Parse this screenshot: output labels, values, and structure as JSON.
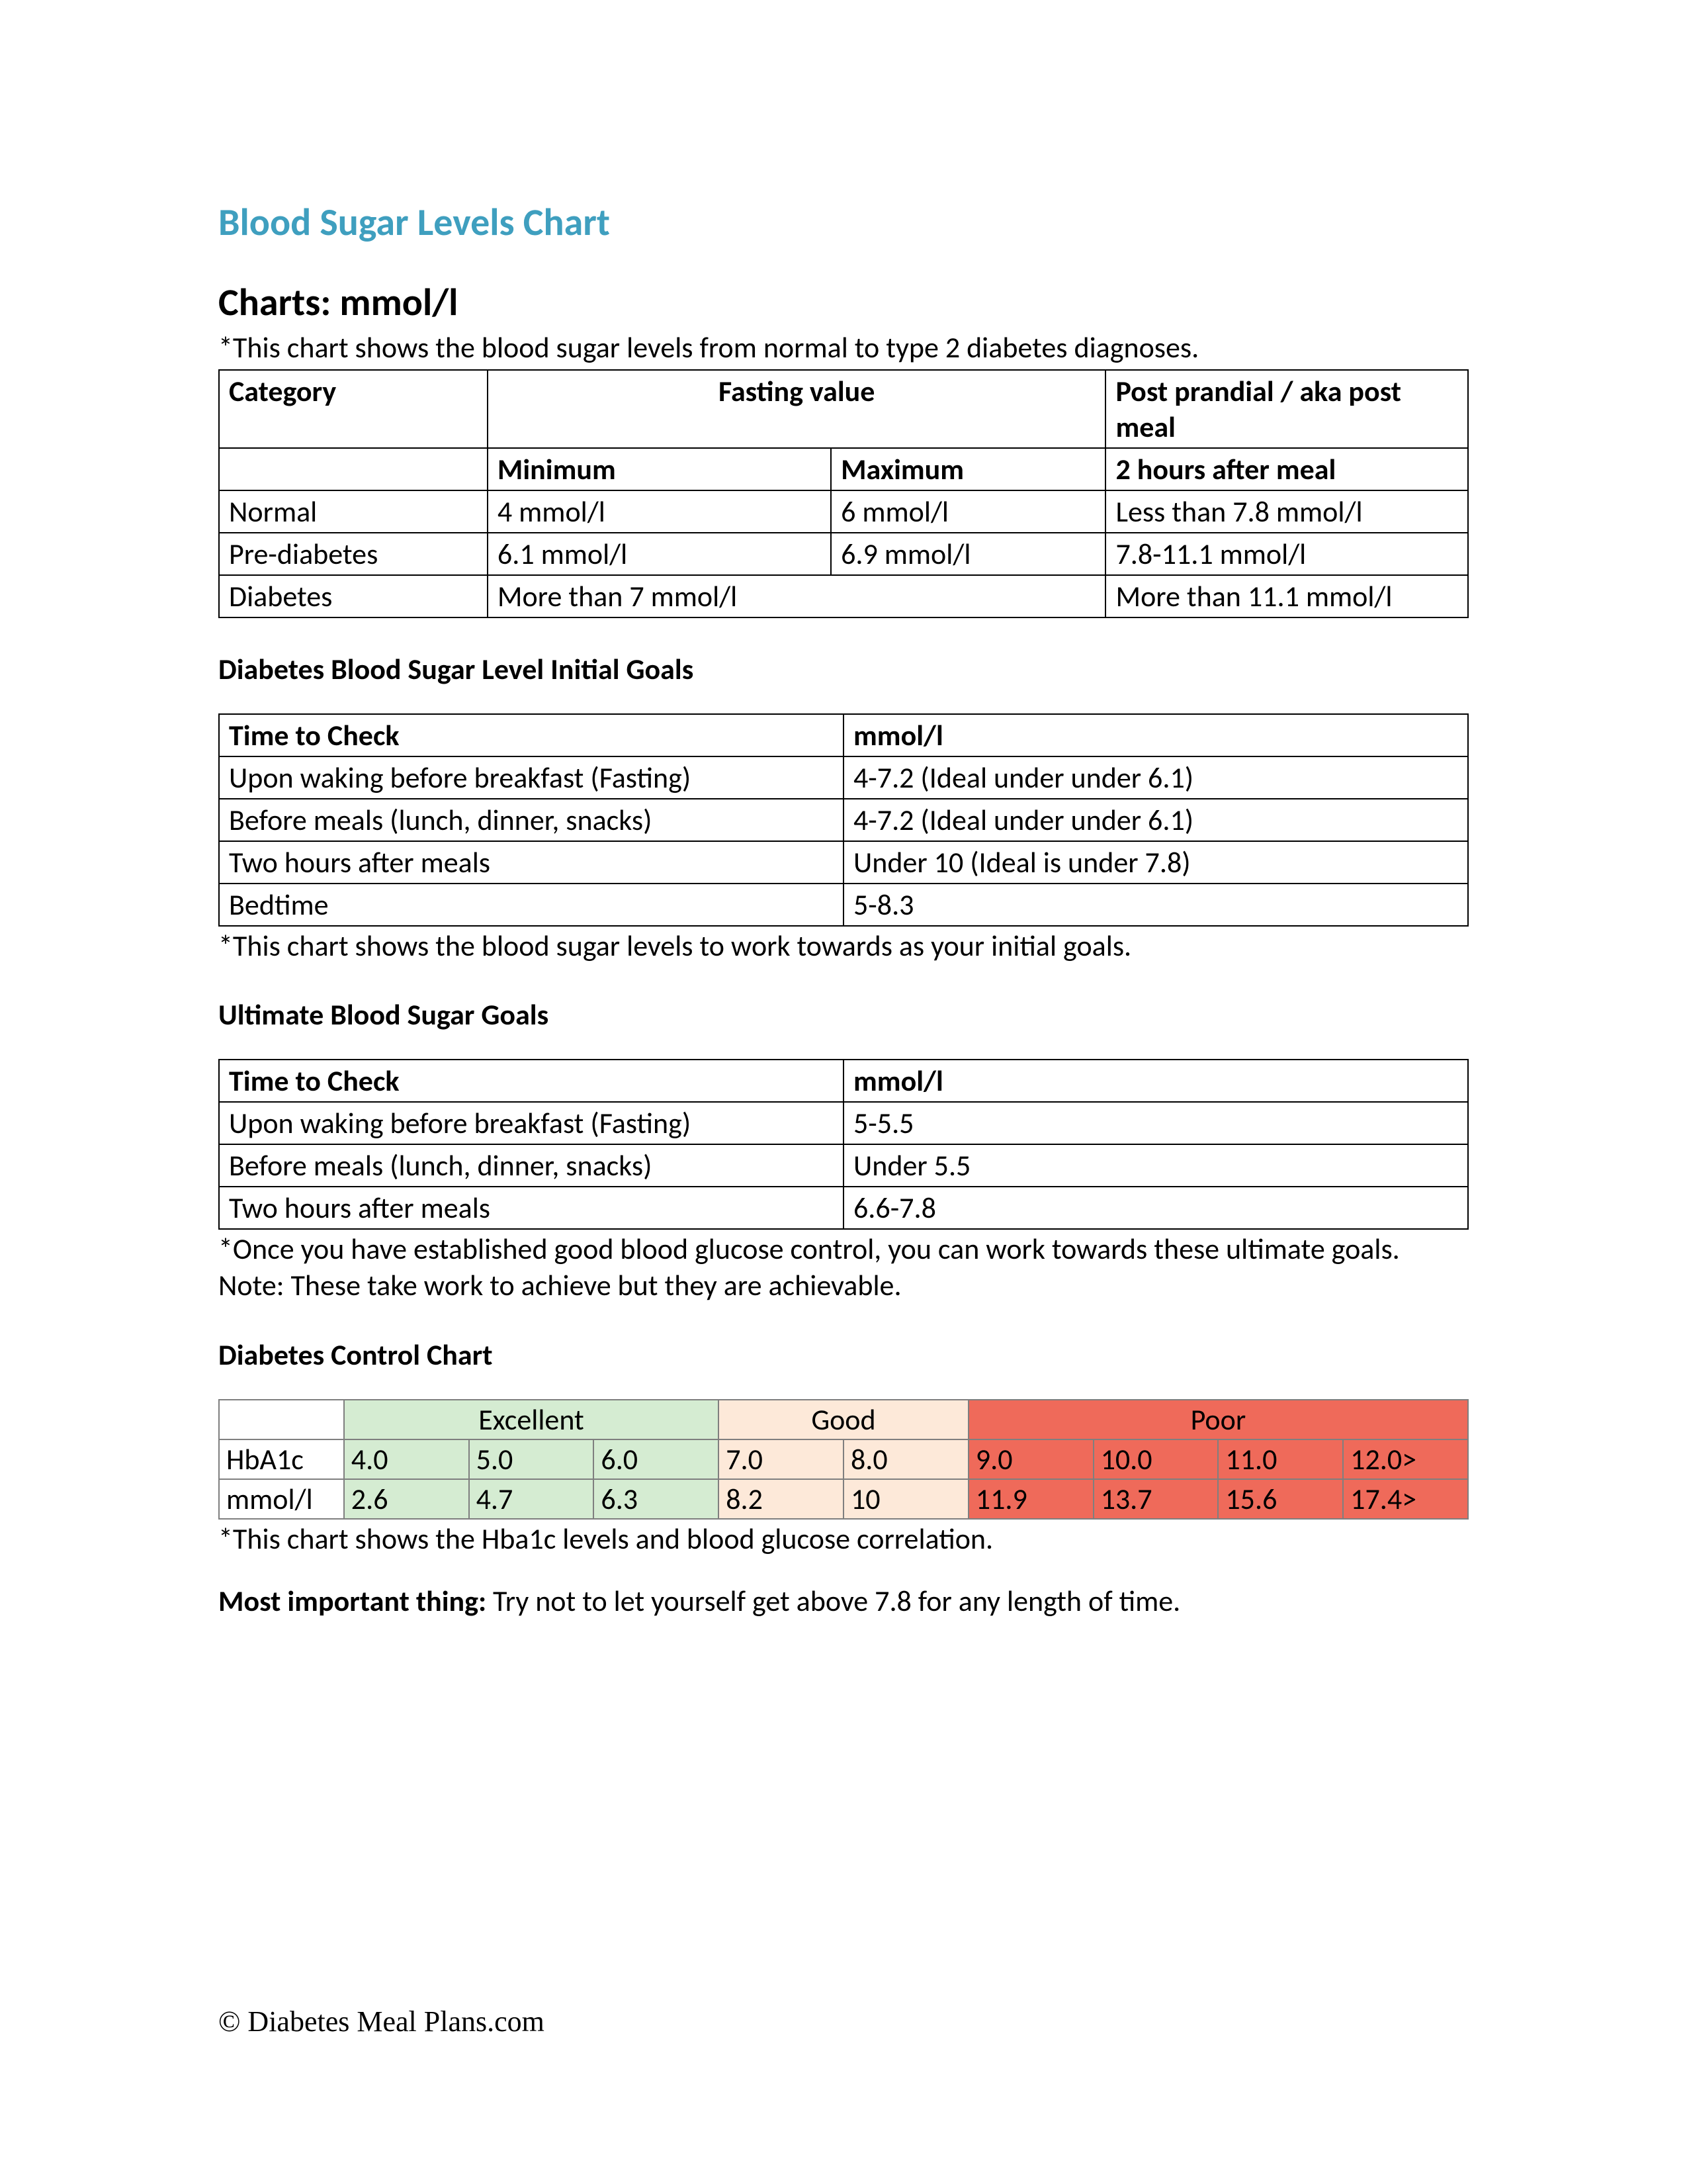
{
  "colors": {
    "title": "#3f9fbf",
    "text": "#000000",
    "border_main": "#000000",
    "border_control": "#7f7f7f",
    "excellent_bg": "#d5ecd2",
    "good_bg": "#fde9d9",
    "poor_bg": "#ef6a5a"
  },
  "title": "Blood Sugar Levels Chart",
  "subtitle": "Charts: mmol/l",
  "table1": {
    "caption": "*This chart shows the blood sugar levels from normal to type 2 diabetes diagnoses.",
    "col_widths_pct": [
      21.5,
      27.5,
      22,
      29
    ],
    "header1": {
      "a": "Category",
      "b": "Fasting value",
      "c": "Post prandial / aka post meal"
    },
    "header2": {
      "a": "",
      "b": "Minimum",
      "c": "Maximum",
      "d": "2 hours after meal"
    },
    "rows": [
      {
        "a": "Normal",
        "b": "4 mmol/l",
        "c": "6 mmol/l",
        "d": "Less than 7.8 mmol/l"
      },
      {
        "a": "Pre-diabetes",
        "b": "6.1 mmol/l",
        "c": "6.9 mmol/l",
        "d": "7.8-11.1 mmol/l"
      },
      {
        "a": "Diabetes",
        "b": "More than 7 mmol/l",
        "c": "",
        "d": "More than 11.1 mmol/l"
      }
    ]
  },
  "table2": {
    "heading": "Diabetes Blood Sugar Level Initial Goals",
    "col_widths_pct": [
      50,
      50
    ],
    "header": {
      "a": "Time to Check",
      "b": "mmol/l"
    },
    "rows": [
      {
        "a": "Upon waking before breakfast (Fasting)",
        "b": "4-7.2 (Ideal under under 6.1)",
        "tall": true
      },
      {
        "a": "Before meals (lunch, dinner, snacks)",
        "b": "4-7.2 (Ideal under under 6.1)",
        "tall": true
      },
      {
        "a": "Two hours after meals",
        "b": "Under 10 (Ideal is under 7.8)",
        "tall": true
      },
      {
        "a": "Bedtime",
        "b": "5-8.3",
        "tall": false
      }
    ],
    "footnote": "*This chart shows the blood sugar levels to work towards as your initial goals."
  },
  "table3": {
    "heading": "Ultimate Blood Sugar Goals",
    "col_widths_pct": [
      50,
      50
    ],
    "header": {
      "a": "Time to Check",
      "b": "mmol/l"
    },
    "rows": [
      {
        "a": "Upon waking before breakfast (Fasting)",
        "b": "5-5.5",
        "tall": true
      },
      {
        "a": "Before meals (lunch, dinner, snacks)",
        "b": "Under 5.5",
        "tall": true
      },
      {
        "a": "Two hours after meals",
        "b": "6.6-7.8",
        "tall": false
      }
    ],
    "footnote": "*Once you have established good blood glucose control, you can work towards these ultimate goals. Note: These take work to achieve but they are achievable."
  },
  "control": {
    "heading": "Diabetes Control Chart",
    "col_widths_pct": [
      10,
      10,
      10,
      10,
      10,
      10,
      10,
      10,
      10,
      10
    ],
    "groups": [
      {
        "label": "Excellent",
        "span": 3,
        "bg": "#d5ecd2"
      },
      {
        "label": "Good",
        "span": 2,
        "bg": "#fde9d9"
      },
      {
        "label": "Poor",
        "span": 4,
        "bg": "#ef6a5a"
      }
    ],
    "rows": [
      {
        "label": "HbA1c",
        "vals": [
          "4.0",
          "5.0",
          "6.0",
          "7.0",
          "8.0",
          "9.0",
          "10.0",
          "11.0",
          "12.0>"
        ]
      },
      {
        "label": "mmol/l",
        "vals": [
          "2.6",
          "4.7",
          "6.3",
          "8.2",
          "10",
          "11.9",
          "13.7",
          "15.6",
          "17.4>"
        ]
      }
    ],
    "cell_bg": [
      "#d5ecd2",
      "#d5ecd2",
      "#d5ecd2",
      "#fde9d9",
      "#fde9d9",
      "#ef6a5a",
      "#ef6a5a",
      "#ef6a5a",
      "#ef6a5a"
    ],
    "footnote": "*This chart shows the Hba1c levels and blood glucose correlation."
  },
  "important": {
    "lead": "Most important thing:",
    "text": " Try not to let yourself get above 7.8 for any length of time."
  },
  "footer": "© Diabetes Meal Plans.com"
}
